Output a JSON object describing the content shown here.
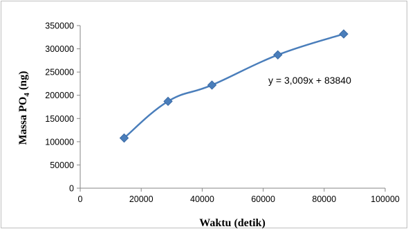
{
  "chart_data": {
    "type": "line",
    "title": "",
    "xlabel": "Waktu (detik)",
    "ylabel_prefix": "Massa PO",
    "ylabel_subscript": "4",
    "ylabel_suffix": " (ng)",
    "xlim": [
      0,
      100000
    ],
    "ylim": [
      0,
      350000
    ],
    "x_ticks": [
      0,
      20000,
      40000,
      60000,
      80000,
      100000
    ],
    "y_ticks": [
      0,
      50000,
      100000,
      150000,
      200000,
      250000,
      300000,
      350000
    ],
    "grid": false,
    "legend": "none",
    "marker": "diamond",
    "smooth": true,
    "line_color": "#4a7ebb",
    "series": [
      {
        "x": [
          14400,
          28800,
          43200,
          64800,
          86400
        ],
        "y": [
          108000,
          187000,
          222000,
          287000,
          332000
        ]
      }
    ],
    "annotations": [
      {
        "text": "y = 3,009x + 83840"
      }
    ]
  }
}
